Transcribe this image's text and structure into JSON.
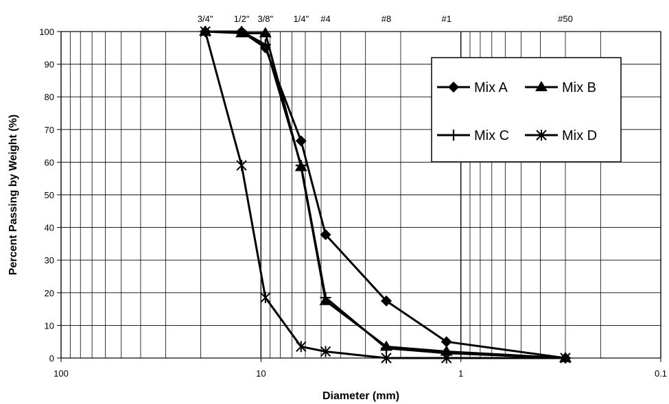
{
  "chart_data": {
    "type": "line",
    "xlabel": "Diameter (mm)",
    "ylabel": "Percent Passing by Weight (%)",
    "x_scale": "log",
    "x_reversed": true,
    "xlim": [
      100,
      0.1
    ],
    "ylim": [
      0,
      100
    ],
    "x_ticks": [
      {
        "value": 100,
        "label": "100"
      },
      {
        "value": 10,
        "label": "10"
      },
      {
        "value": 1,
        "label": "1"
      },
      {
        "value": 0.1,
        "label": "0.1"
      }
    ],
    "y_ticks": [
      0,
      10,
      20,
      30,
      40,
      50,
      60,
      70,
      80,
      90,
      100
    ],
    "sieve_labels": [
      {
        "value": 19.0,
        "label": "3/4\""
      },
      {
        "value": 12.5,
        "label": "1/2\""
      },
      {
        "value": 9.5,
        "label": "3/8\""
      },
      {
        "value": 6.3,
        "label": "1/4\""
      },
      {
        "value": 4.75,
        "label": "#4"
      },
      {
        "value": 2.36,
        "label": "#8"
      },
      {
        "value": 1.18,
        "label": "#1"
      },
      {
        "value": 0.3,
        "label": "#50"
      }
    ],
    "grid": true,
    "legend_position": "top-right",
    "series": [
      {
        "name": "Mix A",
        "marker": "diamond",
        "x": [
          19.0,
          12.5,
          9.5,
          6.3,
          4.75,
          2.36,
          1.18,
          0.3
        ],
        "y": [
          100,
          100,
          95,
          66.5,
          37.8,
          17.5,
          5,
          0
        ]
      },
      {
        "name": "Mix B",
        "marker": "triangle",
        "x": [
          19.0,
          12.5,
          9.5,
          6.3,
          4.75,
          2.36,
          1.18,
          0.3
        ],
        "y": [
          100,
          99.5,
          99.5,
          58.5,
          17.5,
          3.5,
          2,
          0
        ]
      },
      {
        "name": "Mix C",
        "marker": "plus",
        "x": [
          19.0,
          12.5,
          9.5,
          6.3,
          4.75,
          2.36,
          1.18,
          0.3
        ],
        "y": [
          100,
          100,
          96,
          59,
          18.5,
          3,
          1.5,
          0
        ]
      },
      {
        "name": "Mix D",
        "marker": "star",
        "x": [
          19.0,
          12.5,
          9.5,
          6.3,
          4.75,
          2.36,
          1.18,
          0.3
        ],
        "y": [
          100,
          59,
          18.5,
          3.5,
          2,
          0,
          0,
          0
        ]
      }
    ]
  }
}
